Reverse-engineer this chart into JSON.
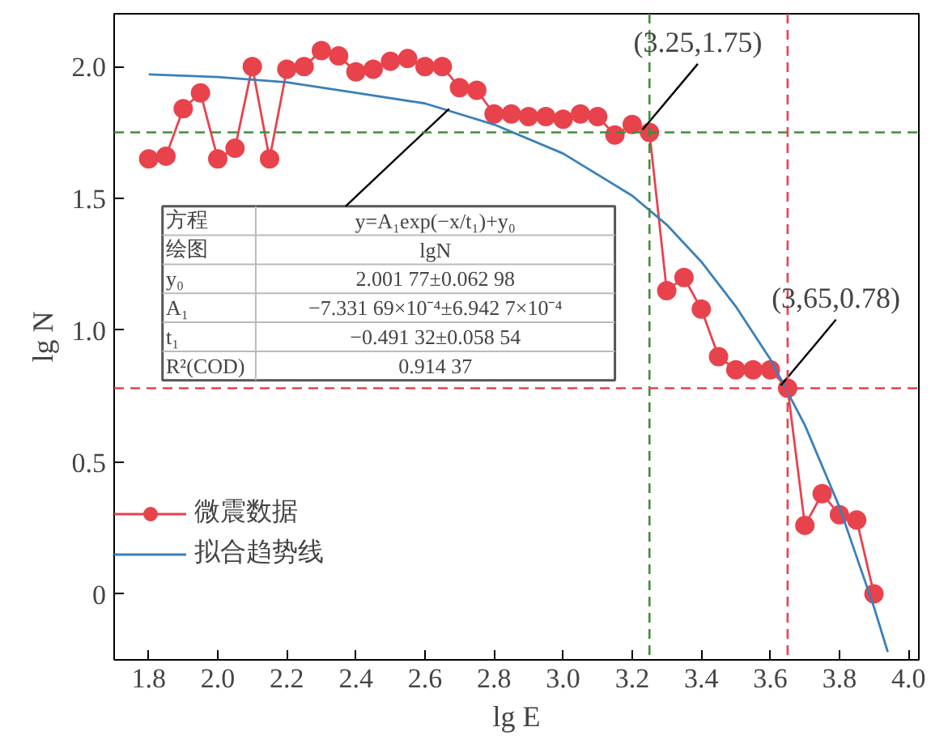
{
  "chart_data": {
    "type": "line",
    "xlabel": "lg E",
    "ylabel": "lg N",
    "xlim": [
      1.7,
      4.03
    ],
    "ylim": [
      -0.25,
      2.2
    ],
    "xticks": [
      1.8,
      {
        "value": 2,
        "label": "2.0"
      },
      2.2,
      2.4,
      2.6,
      2.8,
      {
        "value": 3,
        "label": "3.0"
      },
      3.2,
      3.4,
      3.6,
      3.8,
      {
        "value": 4,
        "label": "4.0"
      }
    ],
    "yticks": [
      {
        "value": 0,
        "label": "0"
      },
      {
        "value": 0.5,
        "label": "0.5"
      },
      {
        "value": 1.0,
        "label": "1.0"
      },
      {
        "value": 1.5,
        "label": "1.5"
      },
      {
        "value": 2.0,
        "label": "2.0"
      }
    ],
    "grid": false,
    "legend": "left",
    "series": [
      {
        "name": "微震数据",
        "color": "#e8434c",
        "marker": "circle",
        "x": [
          1.8,
          1.85,
          1.9,
          1.95,
          2.0,
          2.05,
          2.1,
          2.15,
          2.2,
          2.25,
          2.3,
          2.35,
          2.4,
          2.45,
          2.5,
          2.55,
          2.6,
          2.65,
          2.7,
          2.75,
          2.8,
          2.85,
          2.9,
          2.95,
          3.0,
          3.05,
          3.1,
          3.15,
          3.2,
          3.25,
          3.3,
          3.35,
          3.4,
          3.45,
          3.5,
          3.55,
          3.6,
          3.65,
          3.7,
          3.75,
          3.8,
          3.85,
          3.9
        ],
        "values": [
          1.65,
          1.66,
          1.84,
          1.9,
          1.65,
          1.69,
          2.0,
          1.65,
          1.99,
          2.0,
          2.06,
          2.04,
          1.98,
          1.99,
          2.02,
          2.03,
          2.0,
          2.0,
          1.92,
          1.91,
          1.82,
          1.82,
          1.81,
          1.81,
          1.8,
          1.82,
          1.81,
          1.74,
          1.78,
          1.75,
          1.15,
          1.2,
          1.08,
          0.9,
          0.85,
          0.85,
          0.85,
          0.78,
          0.26,
          0.38,
          0.3,
          0.28,
          0.0
        ]
      },
      {
        "name": "拟合趋势线",
        "color": "#3a80b9",
        "marker": "none",
        "x": [
          1.8,
          2.0,
          2.2,
          2.4,
          2.6,
          2.8,
          3.0,
          3.2,
          3.3,
          3.4,
          3.5,
          3.6,
          3.7,
          3.8,
          3.9,
          3.94
        ],
        "values": [
          1.97,
          1.96,
          1.94,
          1.9,
          1.86,
          1.78,
          1.67,
          1.51,
          1.4,
          1.26,
          1.09,
          0.89,
          0.64,
          0.33,
          -0.05,
          -0.22
        ]
      }
    ],
    "ref_lines": [
      {
        "axis": "y",
        "value": 1.75,
        "color": "#3f8f3a",
        "line_style": "dashed"
      },
      {
        "axis": "x",
        "value": 3.25,
        "color": "#3f8f3a",
        "line_style": "dashed"
      },
      {
        "axis": "y",
        "value": 0.78,
        "color": "#e8434c",
        "line_style": "dashed"
      },
      {
        "axis": "x",
        "value": 3.65,
        "color": "#e8434c",
        "line_style": "dashed"
      }
    ],
    "annotations": [
      "方程",
      {
        "text": "y=A₁exp(−x/t₁)+y₀",
        "x": 2.67,
        "y": 1.84
      },
      "绘图",
      "lgN",
      "y₀",
      "2.001 77±0.062 98",
      "A₁",
      "−7.331 69×10⁻⁴±6.942 7×10⁻⁴",
      "t₁",
      "−0.491 32±0.058 54",
      "R²(COD)",
      "0.914 37",
      {
        "text": "(3.25,1.75)",
        "x": 3.25,
        "y": 1.75
      },
      {
        "text": "(3,65,0.78)",
        "x": 3.65,
        "y": 0.78
      }
    ]
  }
}
